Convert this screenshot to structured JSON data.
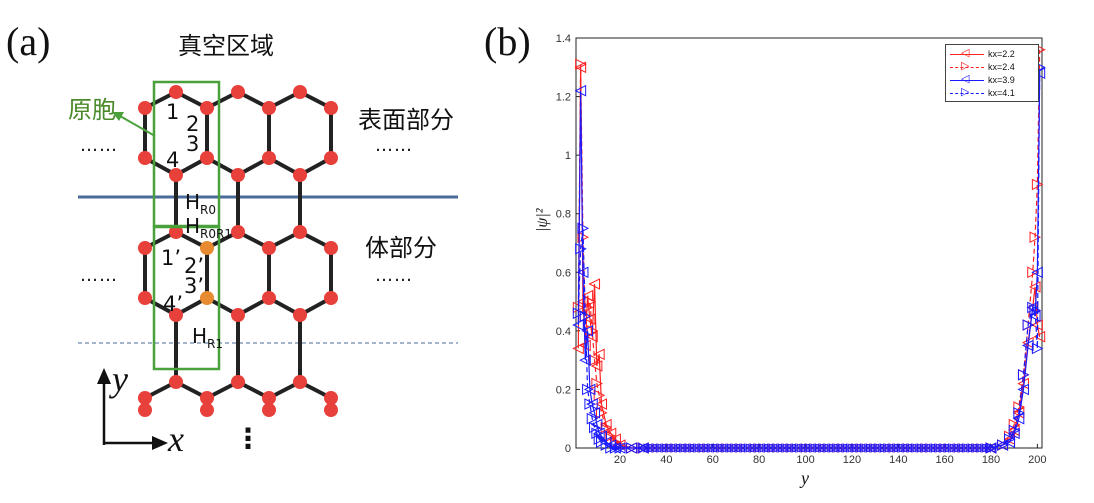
{
  "panel_a": {
    "label": "(a)",
    "vacuum_label": "真空区域",
    "cell_label": "原胞",
    "surface_label": "表面部分",
    "bulk_label": "体部分",
    "dots": "……",
    "site_labels": {
      "s1": "1",
      "s2": "2",
      "s3": "3",
      "s4": "4",
      "s1p": "1’",
      "s2p": "2’",
      "s3p": "3’",
      "s4p": "4’"
    },
    "h_labels": {
      "hr0": {
        "main": "H",
        "sub": "R0"
      },
      "hr0r1": {
        "main": "H",
        "sub": "R0R1"
      },
      "hr1": {
        "main": "H",
        "sub": "R1"
      }
    },
    "axis_y": "y",
    "axis_x": "x",
    "vdots": "⋮",
    "colors": {
      "atom": "#e8403a",
      "atom_orange": "#e88a30",
      "bond": "#222222",
      "cell": "#4aa03a",
      "surface_line": "#4a6a9a",
      "dash_line": "#4a6a9a"
    }
  },
  "panel_b": {
    "label": "(b)",
    "ylabel": "|ψ|²",
    "xlabel": "y",
    "xticks": [
      "20",
      "40",
      "60",
      "80",
      "100",
      "120",
      "140",
      "160",
      "180",
      "200"
    ],
    "yticks": [
      "0",
      "0.2",
      "0.4",
      "0.6",
      "0.8",
      "1",
      "1.2",
      "1.4"
    ],
    "legend": [
      {
        "label": "kx=2.2",
        "color": "#ff2020",
        "marker": "◁",
        "dash": false
      },
      {
        "label": "kx=2.4",
        "color": "#ff2020",
        "marker": "▷",
        "dash": true
      },
      {
        "label": "kx=3.9",
        "color": "#1a1aff",
        "marker": "◁",
        "dash": false
      },
      {
        "label": "kx=4.1",
        "color": "#1a1aff",
        "marker": "▷",
        "dash": true
      }
    ]
  },
  "chart_data": {
    "type": "line",
    "xlabel": "y",
    "ylabel": "|ψ|²",
    "xlim": [
      1,
      202
    ],
    "ylim": [
      0,
      1.4
    ],
    "xticks": [
      20,
      40,
      60,
      80,
      100,
      120,
      140,
      160,
      180,
      200
    ],
    "yticks": [
      0,
      0.2,
      0.4,
      0.6,
      0.8,
      1,
      1.2,
      1.4
    ],
    "legend_position": "top-right",
    "series": [
      {
        "name": "kx=2.2",
        "color": "#ff2020",
        "marker": "left-triangle",
        "dash": false,
        "x": [
          2,
          3,
          4,
          5,
          6,
          7,
          8,
          9,
          10,
          11,
          12,
          14,
          16,
          18,
          20,
          25,
          30,
          180,
          185,
          188,
          190,
          192,
          194,
          196,
          198,
          199,
          200,
          201
        ],
        "y": [
          0.34,
          1.3,
          0.5,
          0.35,
          0.52,
          0.44,
          0.38,
          0.56,
          0.28,
          0.32,
          0.15,
          0.08,
          0.05,
          0.03,
          0.01,
          0.0,
          0.0,
          0.0,
          0.01,
          0.03,
          0.06,
          0.12,
          0.22,
          0.36,
          0.48,
          0.55,
          0.42,
          0.38
        ]
      },
      {
        "name": "kx=2.4",
        "color": "#ff2020",
        "marker": "right-triangle",
        "dash": true,
        "x": [
          2,
          3,
          4,
          5,
          6,
          7,
          8,
          9,
          10,
          11,
          12,
          14,
          16,
          18,
          20,
          25,
          30,
          180,
          185,
          188,
          190,
          192,
          194,
          196,
          198,
          199,
          200,
          201
        ],
        "y": [
          0.48,
          1.31,
          0.72,
          0.45,
          0.48,
          0.5,
          0.4,
          0.3,
          0.22,
          0.18,
          0.12,
          0.07,
          0.04,
          0.02,
          0.01,
          0.0,
          0.0,
          0.0,
          0.01,
          0.04,
          0.08,
          0.14,
          0.25,
          0.42,
          0.6,
          0.72,
          0.9,
          1.36
        ]
      },
      {
        "name": "kx=3.9",
        "color": "#1a1aff",
        "marker": "left-triangle",
        "dash": false,
        "x": [
          2,
          3,
          4,
          5,
          6,
          7,
          8,
          9,
          10,
          11,
          12,
          14,
          16,
          18,
          20,
          25,
          30,
          180,
          185,
          188,
          190,
          192,
          194,
          196,
          198,
          199,
          200,
          201
        ],
        "y": [
          0.42,
          1.22,
          0.6,
          0.3,
          0.4,
          0.2,
          0.15,
          0.12,
          0.08,
          0.05,
          0.04,
          0.02,
          0.01,
          0.0,
          0.0,
          0.0,
          0.0,
          0.0,
          0.01,
          0.02,
          0.05,
          0.1,
          0.2,
          0.35,
          0.48,
          0.45,
          0.6,
          1.28
        ]
      },
      {
        "name": "kx=4.1",
        "color": "#1a1aff",
        "marker": "right-triangle",
        "dash": true,
        "x": [
          2,
          3,
          4,
          5,
          6,
          7,
          8,
          9,
          10,
          11,
          12,
          14,
          16,
          18,
          20,
          25,
          30,
          180,
          185,
          188,
          190,
          192,
          194,
          196,
          198,
          199,
          200,
          201
        ],
        "y": [
          0.46,
          0.68,
          0.75,
          0.45,
          0.2,
          0.15,
          0.1,
          0.07,
          0.05,
          0.03,
          0.02,
          0.01,
          0.0,
          0.0,
          0.0,
          0.0,
          0.0,
          0.0,
          0.01,
          0.03,
          0.06,
          0.12,
          0.25,
          0.42,
          0.48,
          0.47,
          0.34,
          1.3
        ]
      }
    ]
  }
}
